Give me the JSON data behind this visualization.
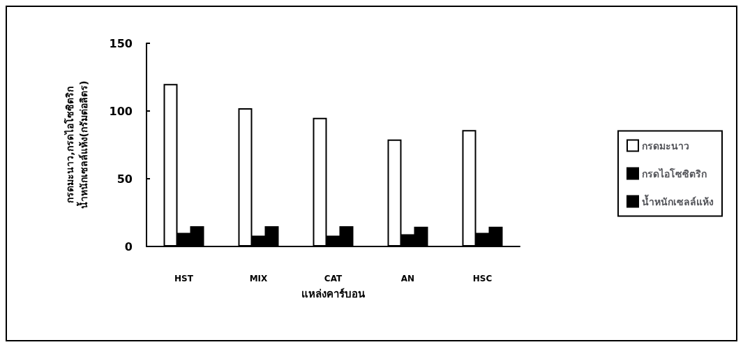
{
  "chart_data": {
    "type": "bar",
    "xlabel": "แหล่งคาร์บอน",
    "ylabel": "กรดมะนาว,กรดไอโซซิตริก\nน้ำหนักเซลล์แห้ง(กรัมต่อลิตร)",
    "categories": [
      "HST",
      "MIX",
      "CAT",
      "AN",
      "HSC"
    ],
    "series": [
      {
        "name": "กรดมะนาว",
        "color": "#ffffff",
        "values": [
          120,
          102,
          95,
          79,
          86
        ]
      },
      {
        "name": "กรดไอโซซิตริก",
        "color": "#000000",
        "values": [
          10,
          8,
          8,
          9,
          10
        ]
      },
      {
        "name": "น้ำหนักเซลล์แห้ง",
        "color": "#000000",
        "values": [
          15,
          15,
          15,
          14.5,
          14.5
        ]
      }
    ],
    "ylim": [
      0,
      150
    ],
    "yticks": [
      0,
      50,
      100,
      150
    ],
    "grid": false,
    "legend": "right"
  }
}
